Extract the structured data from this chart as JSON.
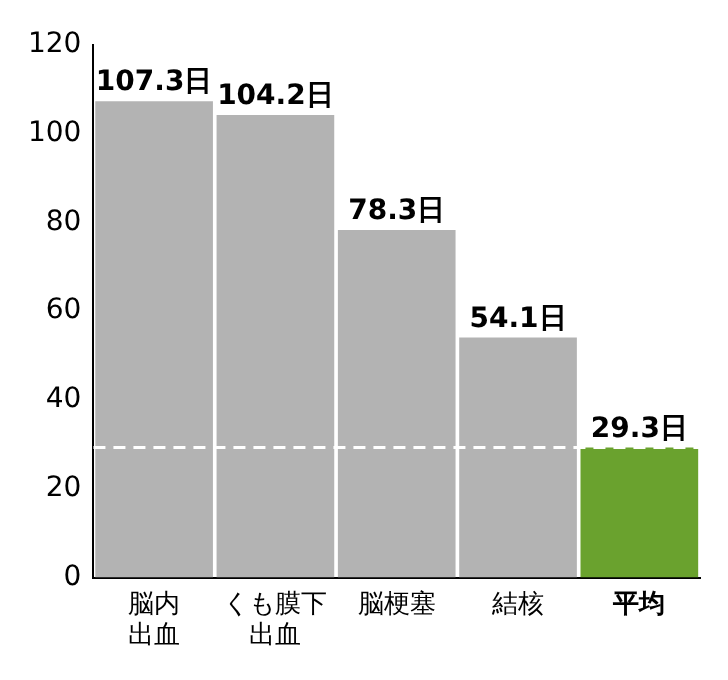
{
  "chart_data": {
    "type": "bar",
    "categories": [
      "脳内出血",
      "くも膜下出血",
      "脳梗塞",
      "結核",
      "平均"
    ],
    "values": [
      107.3,
      104.2,
      78.3,
      54.1,
      29.3
    ],
    "colors": [
      "#b3b3b3",
      "#b3b3b3",
      "#b3b3b3",
      "#b3b3b3",
      "#6aa22e"
    ],
    "value_labels": [
      "107.3日",
      "104.2日",
      "78.3日",
      "54.1日",
      "29.3日"
    ],
    "ylim": [
      0,
      120
    ],
    "yticks": [
      0,
      20,
      40,
      60,
      80,
      100,
      120
    ],
    "grid": false,
    "legend": false,
    "ref_lines": [
      {
        "axis": "y",
        "value": 29.3,
        "color": "#ffffff",
        "line_style": "dashed"
      }
    ]
  }
}
